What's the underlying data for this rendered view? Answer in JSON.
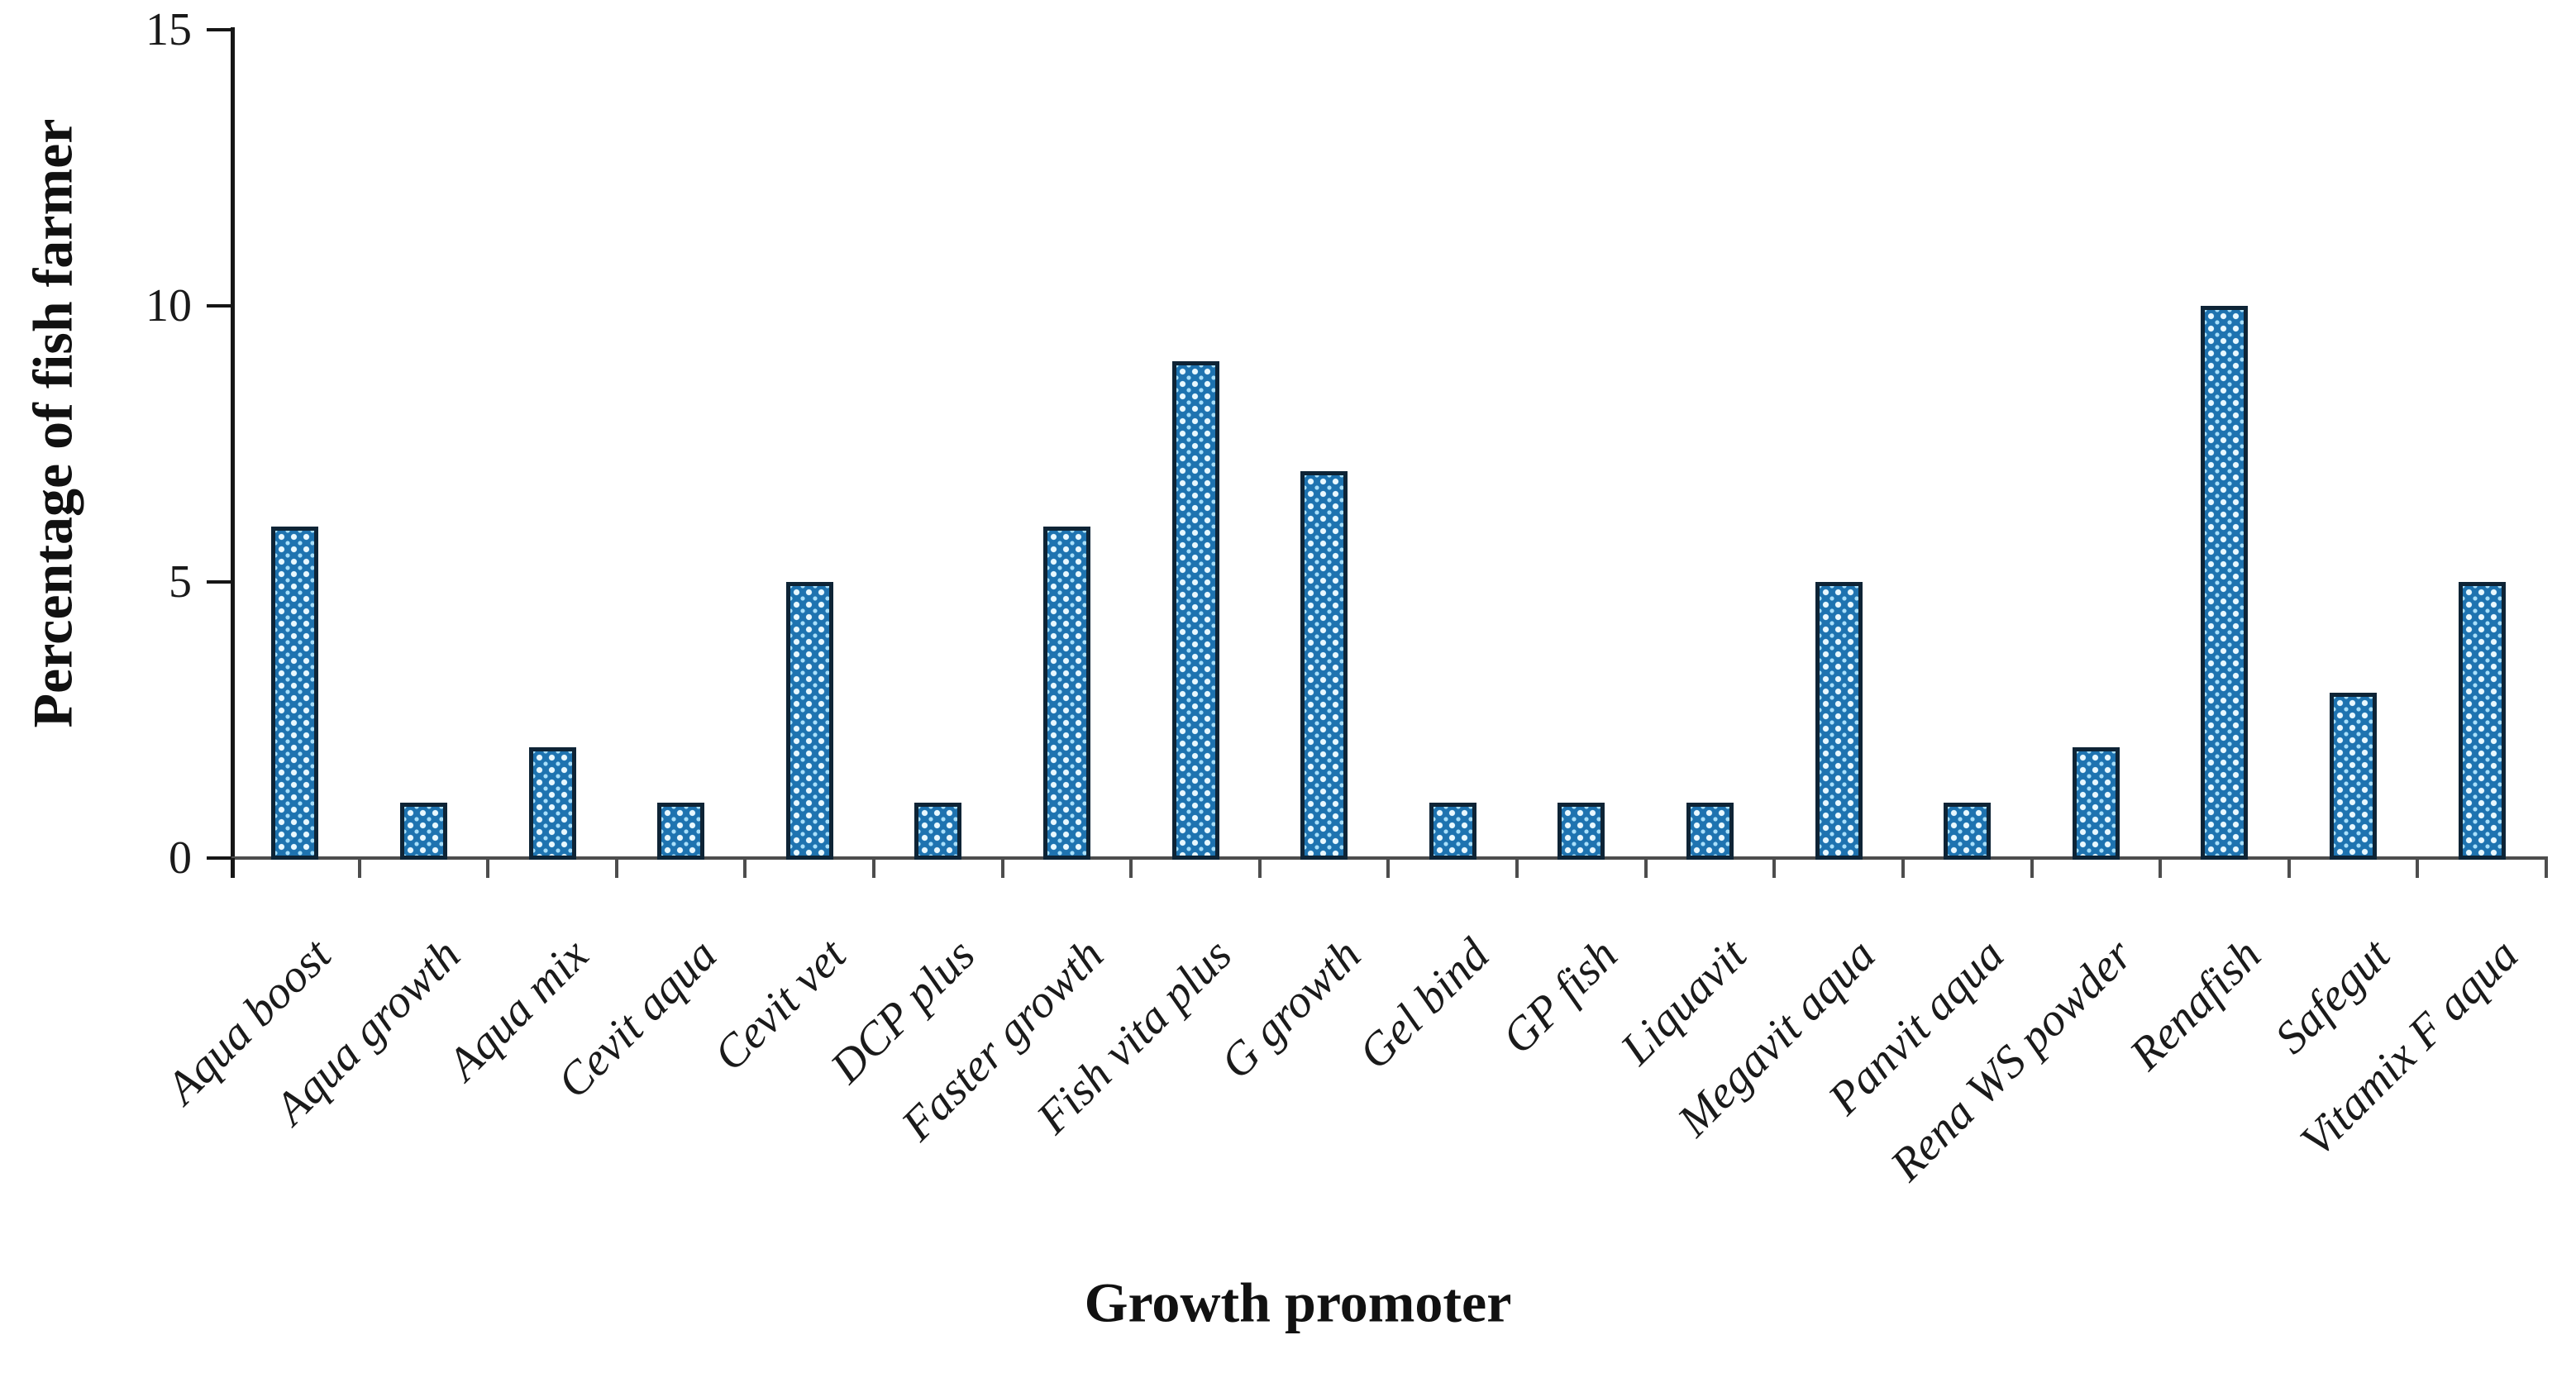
{
  "chart_data": {
    "type": "bar",
    "title": "",
    "xlabel": "Growth promoter",
    "ylabel": "Percentage of fish farmer",
    "categories": [
      "Aqua boost",
      "Aqua growth",
      "Aqua mix",
      "Cevit aqua",
      "Cevit vet",
      "DCP plus",
      "Faster growth",
      "Fish vita plus",
      "G growth",
      "Gel bind",
      "GP fish",
      "Liquavit",
      "Megavit aqua",
      "Panvit aqua",
      "Rena WS powder",
      "Renafish",
      "Safegut",
      "Vitamix F aqua"
    ],
    "values": [
      6,
      1,
      2,
      1,
      5,
      1,
      6,
      9,
      7,
      1,
      1,
      1,
      5,
      1,
      2,
      10,
      3,
      5
    ],
    "ylim": [
      0,
      15
    ],
    "yticks": [
      0,
      5,
      10,
      15
    ],
    "grid": false,
    "legend": "none",
    "colors": {
      "bar_fill": "#1e73b0",
      "bar_dot_large": "#e8f8ff",
      "bar_dot_small": "#a9e0fb",
      "bar_border": "#0e2436",
      "y_axis_line": "#161616",
      "x_axis_line": "#4d4d4d",
      "text": "#1a1a1a"
    }
  }
}
